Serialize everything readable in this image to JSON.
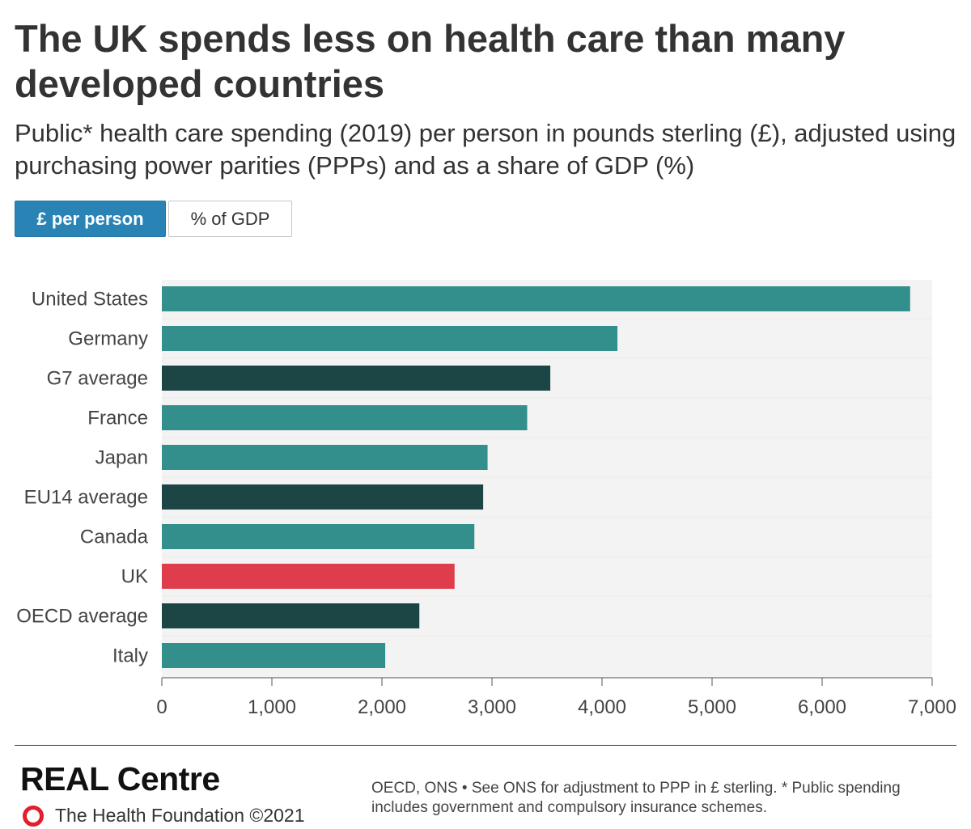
{
  "title": "The UK spends less on health care than many developed countries",
  "subtitle": "Public* health care spending (2019) per person in pounds sterling (£), adjusted using purchasing power parities (PPPs) and as a share of GDP (%)",
  "toggle": {
    "per_person_label": "£ per person",
    "gdp_label": "% of GDP",
    "selected": "per_person"
  },
  "colors": {
    "country": "#338f8c",
    "average": "#1c4646",
    "uk": "#df3d4c",
    "plot_bg": "#f3f3f3",
    "axis": "#555555"
  },
  "chart_data": {
    "type": "bar",
    "orientation": "horizontal",
    "categories": [
      "United States",
      "Germany",
      "G7 average",
      "France",
      "Japan",
      "EU14 average",
      "Canada",
      "UK",
      "OECD average",
      "Italy"
    ],
    "values": [
      6800,
      4140,
      3530,
      3320,
      2960,
      2920,
      2840,
      2660,
      2340,
      2030
    ],
    "groups": [
      "country",
      "country",
      "average",
      "country",
      "country",
      "average",
      "country",
      "uk",
      "average",
      "country"
    ],
    "xlim": [
      0,
      7000
    ],
    "xticks": [
      0,
      1000,
      2000,
      3000,
      4000,
      5000,
      6000,
      7000
    ],
    "xtick_labels": [
      "0",
      "1,000",
      "2,000",
      "3,000",
      "4,000",
      "5,000",
      "6,000",
      "7,000"
    ],
    "xlabel": "",
    "ylabel": ""
  },
  "footer": {
    "brand": "REAL Centre",
    "org": "The Health Foundation ©2021",
    "source": "OECD, ONS • See ONS for adjustment to PPP in £ sterling. * Public spending includes government and compulsory insurance schemes."
  }
}
